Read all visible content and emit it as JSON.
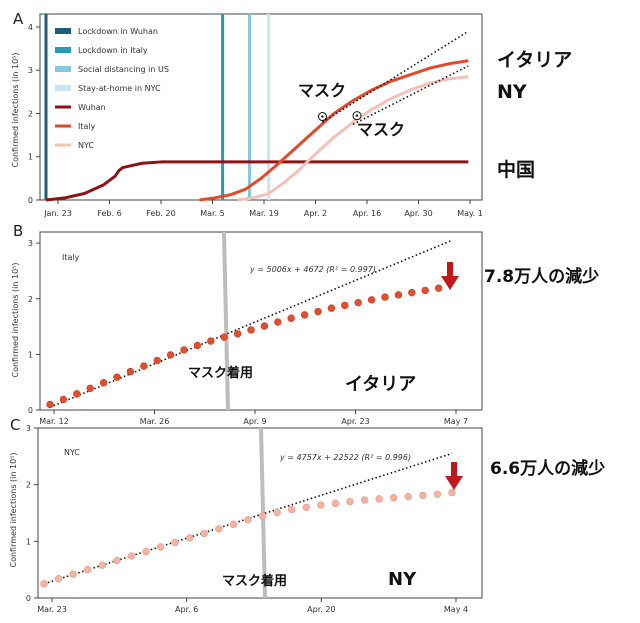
{
  "chart_data": [
    {
      "panel_letter": "A",
      "type": "line",
      "ylabel": "Confirmed infections (in 10⁵)",
      "yticks": [
        "0",
        "1",
        "2",
        "3",
        "4"
      ],
      "ylim": [
        0,
        4.3
      ],
      "xticks": [
        "Jan. 23",
        "Feb. 6",
        "Feb. 20",
        "Mar. 5",
        "Mar. 19",
        "Apr. 2",
        "Apr. 16",
        "Apr. 30",
        "May. 1"
      ],
      "legend": [
        {
          "label": "Lockdown in Wuhan",
          "color": "#1b5e7a",
          "kind": "bar"
        },
        {
          "label": "Lockdown in Italy",
          "color": "#2a9bb0",
          "kind": "bar"
        },
        {
          "label": "Social distancing in US",
          "color": "#86c7dc",
          "kind": "bar"
        },
        {
          "label": "Stay-at-home in NYC",
          "color": "#c9e6f0",
          "kind": "bar"
        },
        {
          "label": "Wuhan",
          "color": "#8e1116",
          "kind": "line"
        },
        {
          "label": "Italy",
          "color": "#e34a2c",
          "kind": "line"
        },
        {
          "label": "NYC",
          "color": "#f5c1b6",
          "kind": "line"
        }
      ],
      "policy_lines": [
        {
          "name": "Lockdown in Wuhan",
          "day": 0,
          "color": "#1b5e7a"
        },
        {
          "name": "Lockdown in Italy",
          "day": 46,
          "color": "#2a9bb0"
        },
        {
          "name": "Social distancing in US",
          "day": 53,
          "color": "#86c7dc"
        },
        {
          "name": "Stay-at-home in NYC",
          "day": 58,
          "color": "#c9e6f0"
        }
      ],
      "series": [
        {
          "name": "Wuhan",
          "color": "#8e1116",
          "x": [
            0,
            5,
            10,
            15,
            18,
            19,
            20,
            25,
            30,
            40,
            60,
            80,
            100,
            110
          ],
          "y": [
            0.0,
            0.05,
            0.15,
            0.35,
            0.55,
            0.68,
            0.75,
            0.85,
            0.88,
            0.88,
            0.88,
            0.88,
            0.88,
            0.88
          ]
        },
        {
          "name": "Italy",
          "color": "#e34a2c",
          "x": [
            40,
            44,
            48,
            52,
            56,
            60,
            65,
            70,
            75,
            80,
            85,
            90,
            95,
            100,
            105,
            110
          ],
          "y": [
            0.0,
            0.05,
            0.12,
            0.25,
            0.5,
            0.8,
            1.2,
            1.6,
            2.0,
            2.3,
            2.55,
            2.75,
            2.9,
            3.05,
            3.15,
            3.22
          ]
        },
        {
          "name": "NYC",
          "color": "#f5c1b6",
          "x": [
            50,
            54,
            58,
            62,
            66,
            70,
            75,
            80,
            85,
            90,
            95,
            100,
            105,
            110
          ],
          "y": [
            0.0,
            0.05,
            0.15,
            0.4,
            0.7,
            1.05,
            1.45,
            1.8,
            2.1,
            2.35,
            2.55,
            2.7,
            2.8,
            2.85
          ]
        }
      ],
      "trend_lines": [
        {
          "x": [
            72,
            110
          ],
          "y": [
            1.8,
            3.9
          ]
        },
        {
          "x": [
            80,
            110
          ],
          "y": [
            1.75,
            3.1
          ]
        }
      ],
      "mask_markers": [
        {
          "x": 72,
          "y": 1.93,
          "label": "マスク"
        },
        {
          "x": 81,
          "y": 1.95,
          "label": "マスク"
        }
      ],
      "side_labels": [
        "イタリア",
        "NY",
        "中国"
      ]
    },
    {
      "panel_letter": "B",
      "type": "scatter",
      "ylabel": "Confirmed infections (in 10⁵)",
      "panel_title": "Italy",
      "yticks": [
        "0",
        "1",
        "2",
        "3"
      ],
      "ylim": [
        0,
        3.2
      ],
      "xticks": [
        "Mar. 12",
        "Mar. 26",
        "Apr. 9",
        "Apr. 23",
        "May 7"
      ],
      "equation": "y = 5006x + 4672 (R² = 0.997)",
      "mask_label": "マスク着用",
      "country_label": "イタリア",
      "side_label": "7.8万人の減少",
      "mask_day": 28,
      "trend_line": {
        "x": [
          0,
          60
        ],
        "y": [
          0.05,
          3.05
        ]
      },
      "points": {
        "x": [
          0,
          2,
          4,
          6,
          8,
          10,
          12,
          14,
          16,
          18,
          20,
          22,
          24,
          26,
          28,
          30,
          32,
          34,
          36,
          38,
          40,
          42,
          44,
          46,
          48,
          50,
          52,
          54,
          56,
          58
        ],
        "y": [
          0.1,
          0.19,
          0.29,
          0.39,
          0.49,
          0.59,
          0.69,
          0.79,
          0.89,
          0.99,
          1.08,
          1.16,
          1.24,
          1.31,
          1.37,
          1.44,
          1.51,
          1.58,
          1.65,
          1.71,
          1.77,
          1.83,
          1.88,
          1.93,
          1.98,
          2.03,
          2.07,
          2.11,
          2.15,
          2.19
        ]
      }
    },
    {
      "panel_letter": "C",
      "type": "scatter",
      "ylabel": "Confirmed infections (in 10⁵)",
      "panel_title": "NYC",
      "yticks": [
        "0",
        "1",
        "2",
        "3"
      ],
      "ylim": [
        0,
        3.0
      ],
      "xticks": [
        "Mar. 23",
        "Apr. 6",
        "Apr. 20",
        "May 4"
      ],
      "equation": "y = 4757x + 22522 (R² = 0.996)",
      "mask_label": "マスク着用",
      "country_label": "NY",
      "side_label": "6.6万人の減少",
      "mask_day": 30,
      "trend_line": {
        "x": [
          0,
          56
        ],
        "y": [
          0.25,
          2.55
        ]
      },
      "points": {
        "x": [
          0,
          2,
          4,
          6,
          8,
          10,
          12,
          14,
          16,
          18,
          20,
          22,
          24,
          26,
          28,
          30,
          32,
          34,
          36,
          38,
          40,
          42,
          44,
          46,
          48,
          50,
          52,
          54,
          56
        ],
        "y": [
          0.25,
          0.34,
          0.42,
          0.5,
          0.58,
          0.66,
          0.74,
          0.82,
          0.9,
          0.98,
          1.06,
          1.14,
          1.22,
          1.3,
          1.38,
          1.45,
          1.51,
          1.56,
          1.6,
          1.64,
          1.67,
          1.7,
          1.73,
          1.75,
          1.77,
          1.79,
          1.81,
          1.83,
          1.86
        ]
      }
    }
  ]
}
